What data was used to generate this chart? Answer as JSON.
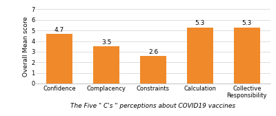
{
  "categories": [
    "Confidence",
    "Complacency",
    "Constraints",
    "Calculation",
    "Collective\nResponsibility"
  ],
  "values": [
    4.7,
    3.5,
    2.6,
    5.3,
    5.3
  ],
  "bar_color": "#F0892A",
  "ylim": [
    0,
    7
  ],
  "yticks": [
    0,
    1,
    2,
    3,
    4,
    5,
    6,
    7
  ],
  "ylabel": "Overall Mean score",
  "xlabel": "The Five \" C's \" perceptions about COVID19 vaccines",
  "background_color": "#ffffff",
  "value_labels": [
    "4.7",
    "3.5",
    "2.6",
    "5.3",
    "5.3"
  ],
  "bar_width": 0.55,
  "label_fontsize": 6.5,
  "tick_fontsize": 6,
  "value_fontsize": 6.5
}
